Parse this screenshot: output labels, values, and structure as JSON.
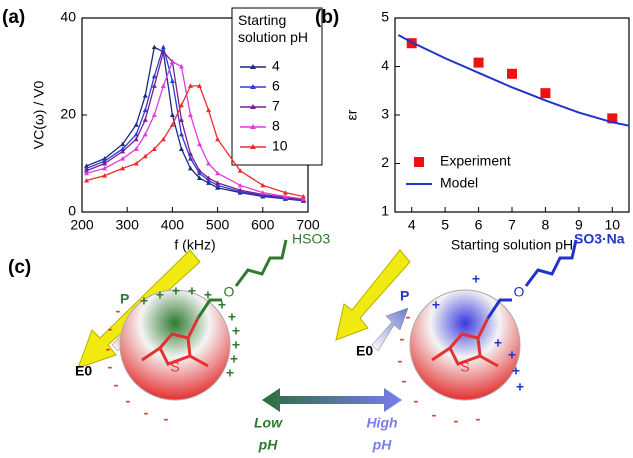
{
  "chart_data": [
    {
      "type": "line",
      "panel_label": "(a)",
      "x_label": "f (kHz)",
      "y_label": "VC(ω) / V0",
      "legend_title": "Starting solution pH",
      "legend_position": "upper right",
      "x": [
        210,
        250,
        290,
        320,
        340,
        360,
        380,
        400,
        420,
        440,
        460,
        480,
        500,
        550,
        600,
        650,
        690
      ],
      "xlim": [
        200,
        700
      ],
      "xticks": [
        200,
        300,
        400,
        500,
        600,
        700
      ],
      "ylim": [
        0,
        40
      ],
      "yticks": [
        0,
        20,
        40
      ],
      "series": [
        {
          "name": "4",
          "color": "#1c2a80",
          "values": [
            9.5,
            11,
            14,
            18,
            24,
            34,
            33,
            20,
            13,
            9,
            7,
            6,
            5,
            4,
            3.2,
            2.7,
            2.3
          ]
        },
        {
          "name": "6",
          "color": "#2b3bd6",
          "values": [
            9,
            10.5,
            13,
            16,
            21,
            28,
            34,
            27,
            16,
            11,
            8,
            6.5,
            5.5,
            4.2,
            3.4,
            2.8,
            2.4
          ]
        },
        {
          "name": "7",
          "color": "#7a1f8f",
          "values": [
            8.5,
            10,
            12.5,
            15,
            19,
            26,
            33,
            31,
            19,
            12,
            8.5,
            7,
            6,
            4.5,
            3.6,
            3,
            2.5
          ]
        },
        {
          "name": "8",
          "color": "#e03ce0",
          "values": [
            8,
            9,
            11,
            13,
            16,
            20,
            26,
            31,
            30,
            20,
            14,
            10,
            8,
            5.5,
            4,
            3.2,
            2.7
          ]
        },
        {
          "name": "10",
          "color": "#f02a2a",
          "values": [
            6.5,
            7.5,
            9,
            10,
            11.5,
            13,
            15,
            18,
            22,
            26,
            26,
            21,
            15,
            8.5,
            5.5,
            4,
            3.2
          ]
        }
      ]
    },
    {
      "type": "scatter",
      "panel_label": "(b)",
      "x_label": "Starting solution pH",
      "y_label": "εr",
      "legend_position": "lower left",
      "xlim": [
        3.5,
        10.5
      ],
      "xticks": [
        4,
        5,
        6,
        7,
        8,
        9,
        10
      ],
      "ylim": [
        1,
        5
      ],
      "yticks": [
        1,
        2,
        3,
        4,
        5
      ],
      "series": [
        {
          "name": "Experiment",
          "color": "#ee1111",
          "style": "marker",
          "x": [
            4,
            6,
            7,
            8,
            10
          ],
          "values": [
            4.48,
            4.08,
            3.85,
            3.45,
            2.93
          ]
        },
        {
          "name": "Model",
          "color": "#2233cc",
          "style": "line",
          "x": [
            3.6,
            4,
            5,
            6,
            7,
            8,
            9,
            10,
            10.5
          ],
          "values": [
            4.65,
            4.5,
            4.17,
            3.87,
            3.57,
            3.3,
            3.05,
            2.85,
            2.78
          ]
        }
      ]
    }
  ],
  "diagram": {
    "panel_label": "(c)",
    "plus": "+",
    "minus": "-",
    "sulfur": "S",
    "oxygen": "O",
    "left": {
      "polarization": "P",
      "field": "E0",
      "group": "HSO3",
      "condition_line1": "Low",
      "condition_line2": "pH"
    },
    "right": {
      "polarization": "P",
      "field": "E0",
      "group": "SO3·Na",
      "condition_line1": "High",
      "condition_line2": "pH"
    }
  }
}
